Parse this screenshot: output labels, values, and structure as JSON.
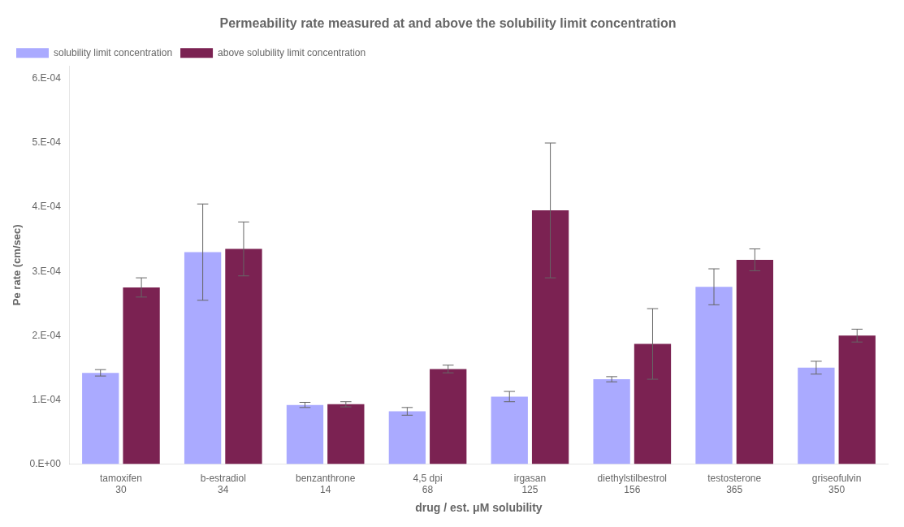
{
  "chart_data": {
    "type": "bar",
    "title": "Permeability rate measured at and above the solubility limit concentration",
    "xlabel": "drug / est. μM solubility",
    "ylabel": "Pe rate (cm/sec)",
    "categories": [
      [
        "tamoxifen",
        "30"
      ],
      [
        "b-estradiol",
        "34"
      ],
      [
        "benzanthrone",
        "14"
      ],
      [
        "4,5 dpi",
        "68"
      ],
      [
        "irgasan",
        "125"
      ],
      [
        "diethylstilbestrol",
        "156"
      ],
      [
        "testosterone",
        "365"
      ],
      [
        "griseofulvin",
        "350"
      ]
    ],
    "series": [
      {
        "name": "solubility limit concentration",
        "color": "#aaaaff",
        "values": [
          0.000142,
          0.00033,
          9.2e-05,
          8.2e-05,
          0.000105,
          0.000132,
          0.000276,
          0.00015
        ],
        "errors": [
          5e-06,
          7.5e-05,
          4e-06,
          6e-06,
          8e-06,
          4e-06,
          2.8e-05,
          1e-05
        ]
      },
      {
        "name": "above solubility limit concentration",
        "color": "#7b2252",
        "values": [
          0.000275,
          0.000335,
          9.3e-05,
          0.000148,
          0.000395,
          0.000187,
          0.000318,
          0.0002
        ],
        "errors": [
          1.5e-05,
          4.2e-05,
          4e-06,
          6e-06,
          0.000105,
          5.5e-05,
          1.7e-05,
          1e-05
        ]
      }
    ],
    "ylim": [
      0,
      0.00062
    ],
    "yticks": [
      {
        "value": 0,
        "label": "0.E+00"
      },
      {
        "value": 0.0001,
        "label": "1.E-04"
      },
      {
        "value": 0.0002,
        "label": "2.E-04"
      },
      {
        "value": 0.0003,
        "label": "3.E-04"
      },
      {
        "value": 0.0004,
        "label": "4.E-04"
      },
      {
        "value": 0.0005,
        "label": "5.E-04"
      },
      {
        "value": 0.0006,
        "label": "6.E-04"
      }
    ],
    "grid": false,
    "legend": "upper left"
  }
}
